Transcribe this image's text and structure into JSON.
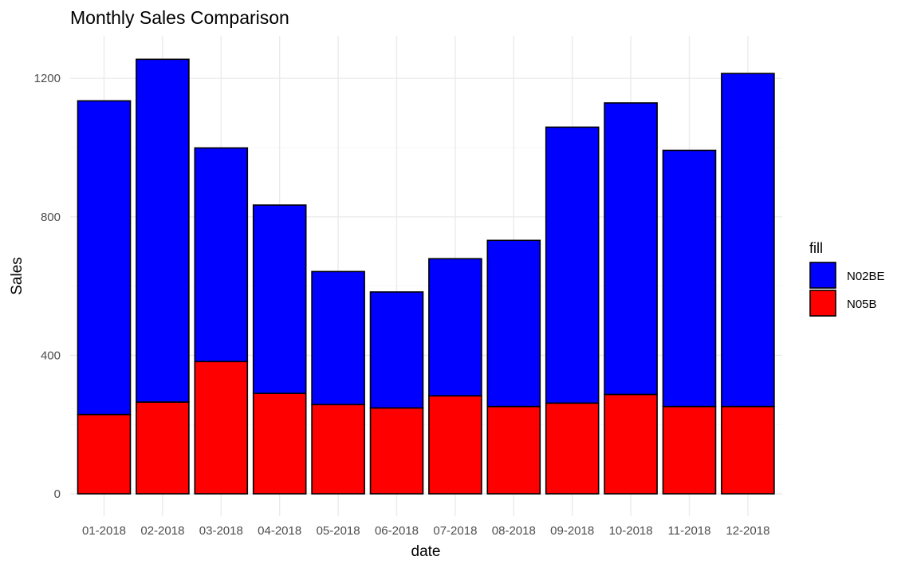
{
  "chart_data": {
    "type": "bar",
    "stacked": true,
    "title": "Monthly Sales Comparison",
    "xlabel": "date",
    "ylabel": "Sales",
    "ylim": [
      0,
      1310
    ],
    "yticks": [
      0,
      400,
      800,
      1200
    ],
    "grid": true,
    "legend": {
      "title": "fill",
      "position": "right"
    },
    "categories": [
      "01-2018",
      "02-2018",
      "03-2018",
      "04-2018",
      "05-2018",
      "06-2018",
      "07-2018",
      "08-2018",
      "09-2018",
      "10-2018",
      "11-2018",
      "12-2018"
    ],
    "series": [
      {
        "name": "N05B",
        "color": "#ff0000",
        "values": [
          229,
          265,
          382,
          290,
          258,
          248,
          283,
          252,
          262,
          287,
          252,
          252
        ]
      },
      {
        "name": "N02BE",
        "color": "#0000ff",
        "values": [
          906,
          990,
          617,
          544,
          384,
          335,
          396,
          480,
          797,
          842,
          740,
          962
        ]
      }
    ],
    "legend_order": [
      "N02BE",
      "N05B"
    ]
  }
}
